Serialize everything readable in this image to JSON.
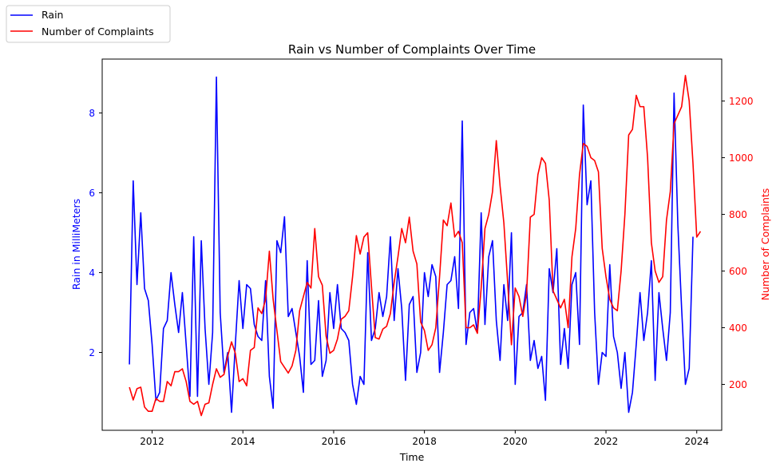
{
  "chart_data": {
    "type": "line",
    "title": "Rain vs Number of Complaints Over Time",
    "xlabel": "Time",
    "ylabel_left": "Rain in MilliMeters",
    "ylabel_right": "Number of Complaints",
    "x_start": "2011-07",
    "x_step": "month",
    "xlim": [
      2010.9,
      2024.55
    ],
    "ylim_left": [
      0.05,
      9.35
    ],
    "ylim_right": [
      38,
      1348
    ],
    "x_ticks": [
      2012,
      2014,
      2016,
      2018,
      2020,
      2022,
      2024
    ],
    "x_tick_labels": [
      "2012",
      "2014",
      "2016",
      "2018",
      "2020",
      "2022",
      "2024"
    ],
    "y_left_ticks": [
      2,
      4,
      6,
      8
    ],
    "y_left_tick_labels": [
      "2",
      "4",
      "6",
      "8"
    ],
    "y_right_ticks": [
      200,
      400,
      600,
      800,
      1000,
      1200
    ],
    "y_right_tick_labels": [
      "200",
      "400",
      "600",
      "800",
      "1000",
      "1200"
    ],
    "grid": false,
    "legend_position": "top-left outside",
    "series": [
      {
        "name": "Rain",
        "axis": "left",
        "color": "#0000ff",
        "values": [
          1.7,
          6.3,
          3.7,
          5.5,
          3.6,
          3.3,
          2.2,
          0.8,
          1.0,
          2.6,
          2.8,
          4.0,
          3.2,
          2.5,
          3.5,
          2.2,
          0.9,
          4.9,
          0.9,
          4.8,
          2.6,
          1.2,
          2.5,
          8.9,
          3.0,
          1.5,
          2.0,
          0.5,
          2.2,
          3.8,
          2.6,
          3.7,
          3.6,
          2.7,
          2.4,
          2.3,
          3.8,
          1.4,
          0.6,
          4.8,
          4.5,
          5.4,
          2.9,
          3.1,
          2.5,
          1.9,
          1.0,
          4.3,
          1.7,
          1.8,
          3.3,
          1.4,
          1.8,
          3.5,
          2.6,
          3.7,
          2.6,
          2.5,
          2.3,
          1.2,
          0.7,
          1.4,
          1.2,
          4.5,
          2.3,
          2.6,
          3.5,
          2.9,
          3.4,
          4.9,
          2.8,
          4.1,
          3.1,
          1.3,
          3.2,
          3.4,
          1.5,
          2.0,
          4.0,
          3.4,
          4.2,
          3.9,
          1.5,
          2.5,
          3.7,
          3.8,
          4.4,
          3.1,
          7.8,
          2.2,
          3.0,
          3.1,
          2.5,
          5.5,
          2.7,
          4.4,
          4.8,
          2.8,
          1.8,
          3.7,
          2.8,
          5.0,
          1.2,
          2.9,
          3.0,
          3.7,
          1.8,
          2.3,
          1.6,
          1.9,
          0.8,
          4.1,
          3.5,
          4.6,
          1.7,
          2.6,
          1.6,
          3.7,
          4.0,
          2.2,
          8.2,
          5.7,
          6.3,
          3.0,
          1.2,
          2.0,
          1.9,
          4.2,
          2.4,
          2.0,
          1.1,
          2.0,
          0.5,
          1.0,
          2.2,
          3.5,
          2.3,
          3.0,
          4.3,
          1.3,
          3.5,
          2.6,
          1.8,
          3.0,
          8.5,
          5.2,
          3.1,
          1.2,
          1.6,
          4.9
        ]
      },
      {
        "name": "Number of Complaints",
        "axis": "right",
        "color": "#ff0000",
        "values": [
          190,
          145,
          185,
          190,
          120,
          105,
          105,
          150,
          140,
          140,
          210,
          195,
          245,
          245,
          255,
          210,
          140,
          130,
          140,
          90,
          130,
          135,
          200,
          255,
          225,
          235,
          300,
          350,
          310,
          210,
          220,
          195,
          320,
          330,
          470,
          450,
          500,
          670,
          500,
          390,
          280,
          260,
          240,
          265,
          320,
          460,
          510,
          560,
          540,
          750,
          580,
          550,
          370,
          310,
          320,
          360,
          430,
          440,
          460,
          580,
          725,
          660,
          720,
          735,
          545,
          365,
          360,
          395,
          405,
          450,
          560,
          650,
          750,
          700,
          790,
          670,
          625,
          420,
          390,
          320,
          340,
          400,
          580,
          780,
          760,
          840,
          720,
          740,
          700,
          400,
          400,
          410,
          380,
          540,
          750,
          800,
          880,
          1060,
          900,
          770,
          560,
          340,
          540,
          510,
          440,
          520,
          790,
          800,
          940,
          1000,
          980,
          850,
          530,
          500,
          470,
          500,
          400,
          650,
          750,
          940,
          1050,
          1040,
          1000,
          990,
          950,
          680,
          580,
          500,
          470,
          460,
          600,
          800,
          1080,
          1100,
          1220,
          1180,
          1180,
          1000,
          700,
          600,
          560,
          580,
          780,
          880,
          1120,
          1150,
          1180,
          1290,
          1200,
          980,
          720,
          740
        ]
      }
    ]
  }
}
